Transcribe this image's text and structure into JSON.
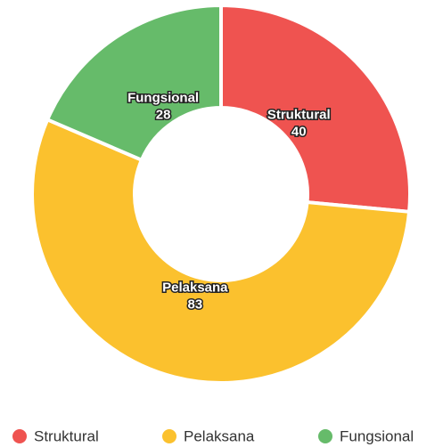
{
  "chart_data": {
    "type": "donut",
    "categories": [
      "Struktural",
      "Pelaksana",
      "Fungsional"
    ],
    "values": [
      40,
      83,
      28
    ],
    "colors": [
      "#ef5350",
      "#fbc12e",
      "#66bb6a"
    ],
    "legend": "bottom"
  }
}
